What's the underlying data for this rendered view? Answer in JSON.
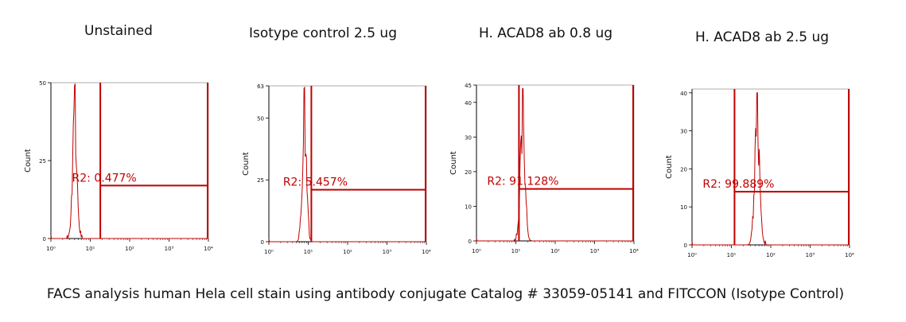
{
  "caption": "FACS analysis human Hela cell stain using antibody conjugate Catalog # 33059-05141 and FITCCON (Isotype Control)",
  "colors": {
    "histogram": "#c00000",
    "gate": "#c00000",
    "axis": "#000000"
  },
  "chart_data": [
    {
      "type": "histogram",
      "title": "Unstained",
      "ylabel": "Count",
      "xscale": "log",
      "xlim": [
        1,
        10000
      ],
      "ylim": [
        0,
        50
      ],
      "yticks": [
        0,
        25,
        50
      ],
      "ytick_labels": [
        "0",
        "25",
        "50"
      ],
      "xtick_labels": [
        "10⁰",
        "10¹",
        "10²",
        "10³",
        "10⁴"
      ],
      "peak": {
        "center": 4,
        "sigma": 0.055,
        "height": 49
      },
      "marker_x": 10000,
      "gate": {
        "label": "R2: 0.477%",
        "x_start": 18,
        "x_end": 10000,
        "y": 17
      }
    },
    {
      "type": "histogram",
      "title": "Isotype control 2.5 ug",
      "ylabel": "Count",
      "xscale": "log",
      "xlim": [
        1,
        10000
      ],
      "ylim": [
        0,
        63
      ],
      "yticks": [
        0,
        25,
        50,
        63
      ],
      "ytick_labels": [
        "0",
        "25",
        "50",
        "63"
      ],
      "xtick_labels": [
        "10⁰",
        "10¹",
        "10²",
        "10³",
        "10⁴"
      ],
      "peak": {
        "center": 8,
        "sigma": 0.055,
        "height": 62
      },
      "marker_x": 10000,
      "gate": {
        "label": "R2: 5.457%",
        "x_start": 12,
        "x_end": 10000,
        "y": 21
      }
    },
    {
      "type": "histogram",
      "title": "H. ACAD8 ab 0.8 ug",
      "ylabel": "Count",
      "xscale": "log",
      "xlim": [
        1,
        10000
      ],
      "ylim": [
        0,
        45
      ],
      "yticks": [
        0,
        10,
        20,
        30,
        40,
        45
      ],
      "ytick_labels": [
        "0",
        "10",
        "20",
        "30",
        "40",
        "45"
      ],
      "xtick_labels": [
        "10⁰",
        "10¹",
        "10²",
        "10³",
        "10⁴"
      ],
      "peak": {
        "center": 15,
        "sigma": 0.06,
        "height": 44
      },
      "marker_x": 10000,
      "gate": {
        "label": "R2: 91.128%",
        "x_start": 12,
        "x_end": 10000,
        "y": 15
      }
    },
    {
      "type": "histogram",
      "title": "H. ACAD8 ab 2.5 ug",
      "ylabel": "Count",
      "xscale": "log",
      "xlim": [
        1,
        10000
      ],
      "ylim": [
        0,
        41
      ],
      "yticks": [
        0,
        10,
        20,
        30,
        40
      ],
      "ytick_labels": [
        "0",
        "10",
        "20",
        "30",
        "40"
      ],
      "xtick_labels": [
        "10⁰",
        "10¹",
        "10²",
        "10³",
        "10⁴"
      ],
      "peak": {
        "center": 45,
        "sigma": 0.065,
        "height": 40
      },
      "marker_x": 10000,
      "gate": {
        "label": "R2: 99.889%",
        "x_start": 12,
        "x_end": 10000,
        "y": 14
      }
    }
  ]
}
